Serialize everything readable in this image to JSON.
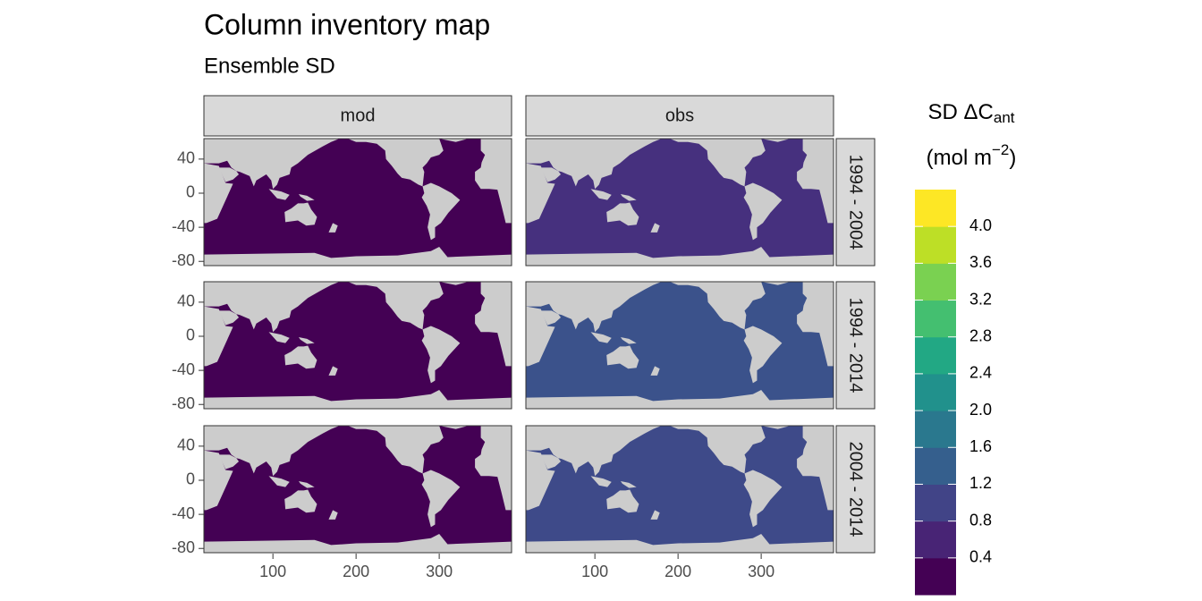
{
  "chart_data": {
    "type": "facet-map",
    "title": "Column inventory map",
    "subtitle": "Ensemble SD",
    "columns": [
      "mod",
      "obs"
    ],
    "rows": [
      "1994 - 2004",
      "1994 - 2014",
      "2004 - 2014"
    ],
    "xlim": [
      17,
      387
    ],
    "xticks": [
      100,
      200,
      300
    ],
    "ylim": [
      -85,
      64
    ],
    "yticks": [
      40,
      0,
      -40,
      -80
    ],
    "ocean_colors": [
      [
        "#440154",
        "#46307e"
      ],
      [
        "#440154",
        "#3b528b"
      ],
      [
        "#440154",
        "#3e4a89"
      ]
    ],
    "land_color": "#cccccc",
    "legend": {
      "title": "SD ΔC",
      "title_sub": "ant",
      "unit": "(mol m",
      "unit_sup": "−2",
      "unit_end": ")",
      "limits": [
        0,
        4.4
      ],
      "breaks": [
        0.4,
        0.8,
        1.2,
        1.6,
        2.0,
        2.4,
        2.8,
        3.2,
        3.6,
        4.0
      ],
      "break_labels": [
        "0.4",
        "0.8",
        "1.2",
        "1.6",
        "2.0",
        "2.4",
        "2.8",
        "3.2",
        "3.6",
        "4.0"
      ],
      "colors": [
        "#440154",
        "#482475",
        "#414487",
        "#355f8d",
        "#2a788e",
        "#21918c",
        "#22a884",
        "#44bf70",
        "#7ad151",
        "#bddf26",
        "#fde725"
      ]
    }
  }
}
